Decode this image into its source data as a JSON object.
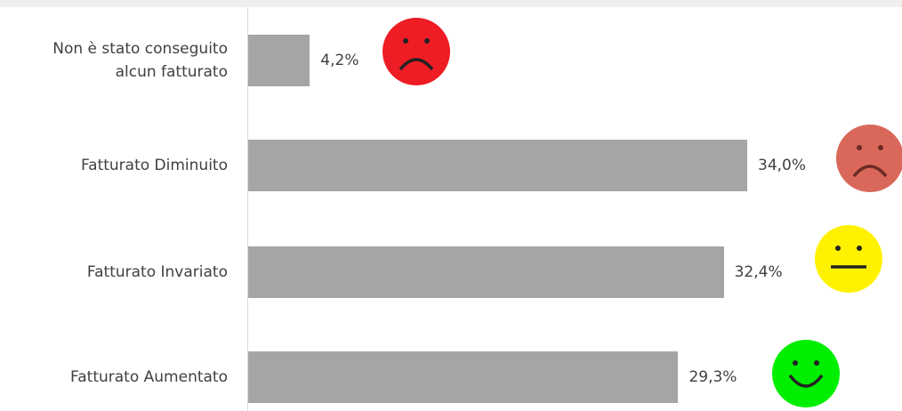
{
  "chart_data": {
    "type": "bar",
    "orientation": "horizontal",
    "categories": [
      "Non è stato conseguito alcun fatturato",
      "Fatturato Diminuito",
      "Fatturato Invariato",
      "Fatturato Aumentato"
    ],
    "values": [
      4.2,
      34.0,
      32.4,
      29.3
    ],
    "value_labels": [
      "4,2%",
      "34,0%",
      "32,4%",
      "29,3%"
    ],
    "color": "#a5a5a5"
  }
}
